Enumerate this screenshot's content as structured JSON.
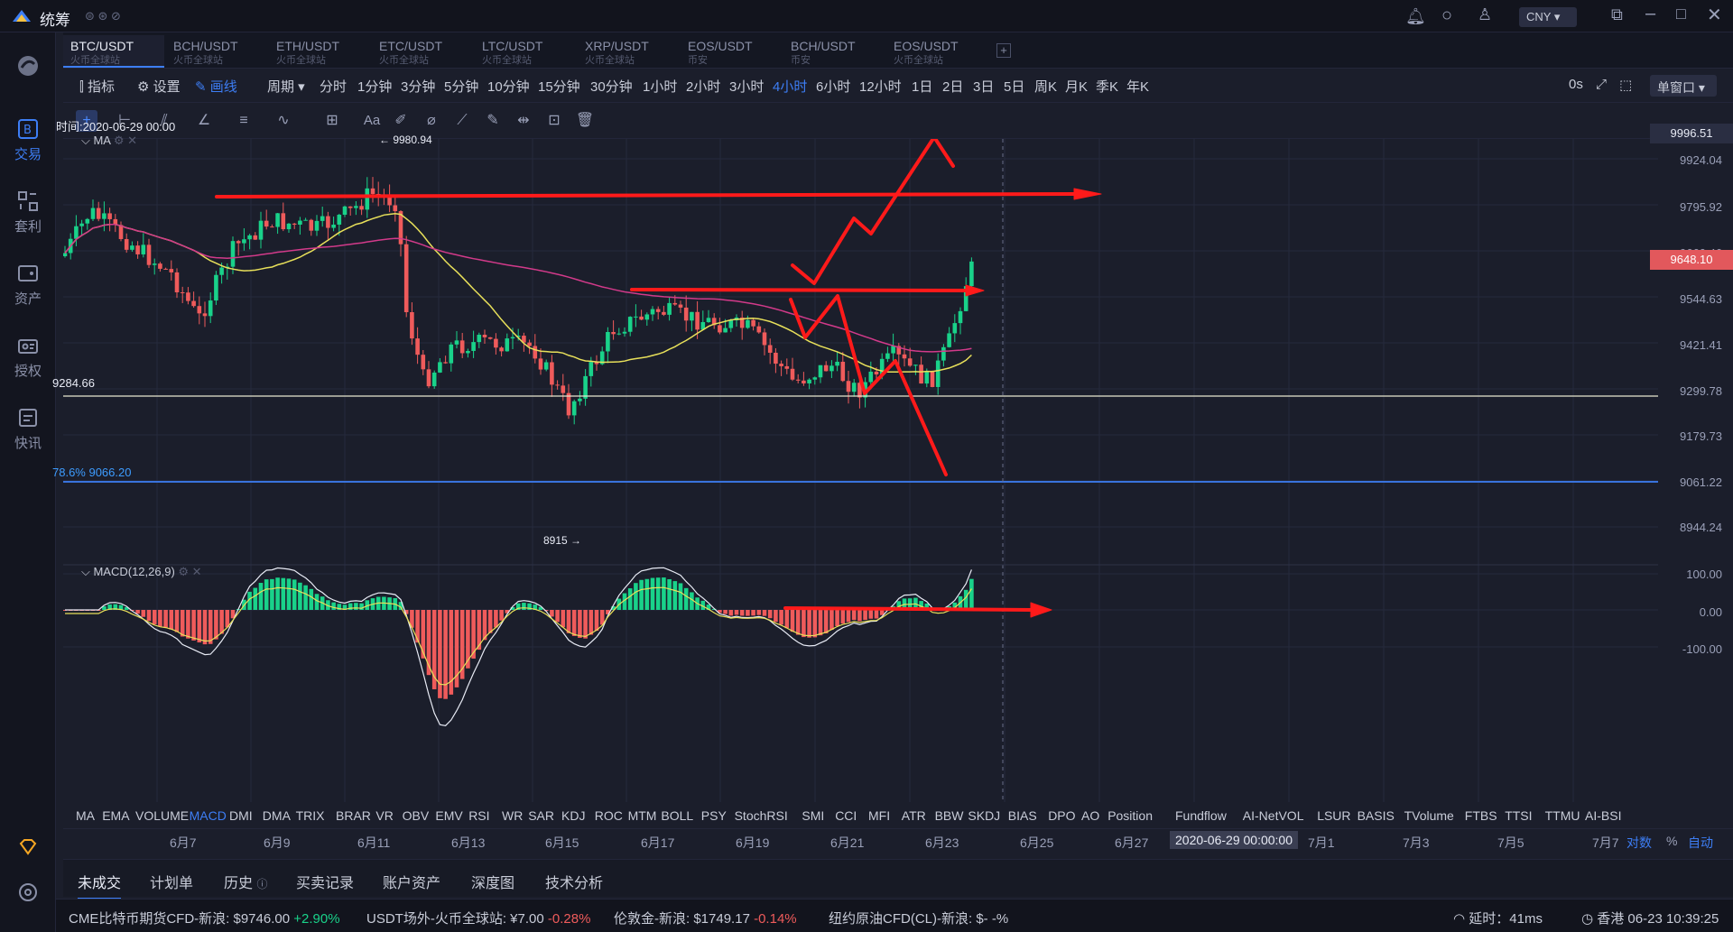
{
  "app": {
    "title": "统筹",
    "currency": "CNY"
  },
  "sidebar": {
    "items": [
      {
        "label": "",
        "icon": "logo-icon"
      },
      {
        "label": "交易",
        "icon": "trade-icon"
      },
      {
        "label": "套利",
        "icon": "arbitrage-icon"
      },
      {
        "label": "资产",
        "icon": "wallet-icon"
      },
      {
        "label": "授权",
        "icon": "authorize-icon"
      },
      {
        "label": "快讯",
        "icon": "news-icon"
      }
    ]
  },
  "tabs": [
    {
      "label": "BTC/USDT",
      "sub": "火币全球站",
      "active": true
    },
    {
      "label": "BCH/USDT",
      "sub": "火币全球站"
    },
    {
      "label": "ETH/USDT",
      "sub": "火币全球站"
    },
    {
      "label": "ETC/USDT",
      "sub": "火币全球站"
    },
    {
      "label": "LTC/USDT",
      "sub": "火币全球站"
    },
    {
      "label": "XRP/USDT",
      "sub": "火币全球站"
    },
    {
      "label": "EOS/USDT",
      "sub": "币安"
    },
    {
      "label": "BCH/USDT",
      "sub": "币安"
    },
    {
      "label": "EOS/USDT",
      "sub": "火币全球站"
    }
  ],
  "toolbar": {
    "indicator": "指标",
    "settings": "设置",
    "draw": "画线",
    "period": "周期",
    "periods": [
      "分时",
      "1分钟",
      "3分钟",
      "5分钟",
      "10分钟",
      "15分钟",
      "30分钟",
      "1小时",
      "2小时",
      "3小时",
      "4小时",
      "6小时",
      "12小时",
      "1日",
      "2日",
      "3日",
      "5日",
      "周K",
      "月K",
      "季K",
      "年K"
    ],
    "active_period": "4小时",
    "countdown": "0s",
    "window_mode": "单窗口"
  },
  "chart": {
    "time_label": "时间:2020-06-29 00:00",
    "ma_label": "MA",
    "macd_label": "MACD(12,26,9)",
    "high_marker": "← 9980.94",
    "low_marker": "8915 →",
    "line_label_1": "9284.66",
    "line_label_2": "78.6% 9066.20",
    "current_price": "9648.10",
    "top_price": "9996.51",
    "price_ticks": [
      "9924.04",
      "9795.92",
      "9660.46",
      "9544.63",
      "9421.41",
      "9299.78",
      "9179.73",
      "9061.22",
      "8944.24"
    ],
    "macd_ticks": [
      "100.00",
      "0.00",
      "-100.00"
    ],
    "colors": {
      "up": "#19d28a",
      "down": "#ef5b5b",
      "accent": "#3d7ef5",
      "arrow": "#ff1a1a"
    }
  },
  "indicators": [
    "MA",
    "EMA",
    "VOLUME",
    "MACD",
    "DMI",
    "DMA",
    "TRIX",
    "BRAR",
    "VR",
    "OBV",
    "EMV",
    "RSI",
    "WR",
    "SAR",
    "KDJ",
    "ROC",
    "MTM",
    "BOLL",
    "PSY",
    "StochRSI",
    "SMI",
    "CCI",
    "MFI",
    "ATR",
    "BBW",
    "SKDJ",
    "BIAS",
    "DPO",
    "AO",
    "Position",
    "Fundflow",
    "AI-NetVOL",
    "LSUR",
    "BASIS",
    "TVolume",
    "FTBS",
    "TTSI",
    "TTMU",
    "AI-BSI"
  ],
  "active_indicator": "MACD",
  "dates": [
    "6月7",
    "6月9",
    "6月11",
    "6月13",
    "6月15",
    "6月17",
    "6月19",
    "6月21",
    "6月23",
    "6月25",
    "6月27",
    "2020-06-29 00:00:00",
    "7月1",
    "7月3",
    "7月5",
    "7月7"
  ],
  "date_opts": {
    "log": "对数",
    "pct": "%",
    "auto": "自动"
  },
  "bottom_tabs": [
    "未成交",
    "计划单",
    "历史",
    "买卖记录",
    "账户资产",
    "深度图",
    "技术分析"
  ],
  "ticker": [
    {
      "name": "CME比特币期货CFD-新浪:",
      "price": "$9746.00",
      "change": "+2.90%",
      "dir": "up"
    },
    {
      "name": "USDT场外-火币全球站:",
      "price": "¥7.00",
      "change": "-0.28%",
      "dir": "down"
    },
    {
      "name": "伦敦金-新浪:",
      "price": "$1749.17",
      "change": "-0.14%",
      "dir": "down"
    },
    {
      "name": "纽约原油CFD(CL)-新浪:",
      "price": "$-",
      "change": "-%",
      "dir": "none"
    }
  ],
  "status": {
    "latency": "延时：41ms",
    "clock": "香港 06-23 10:39:25"
  }
}
